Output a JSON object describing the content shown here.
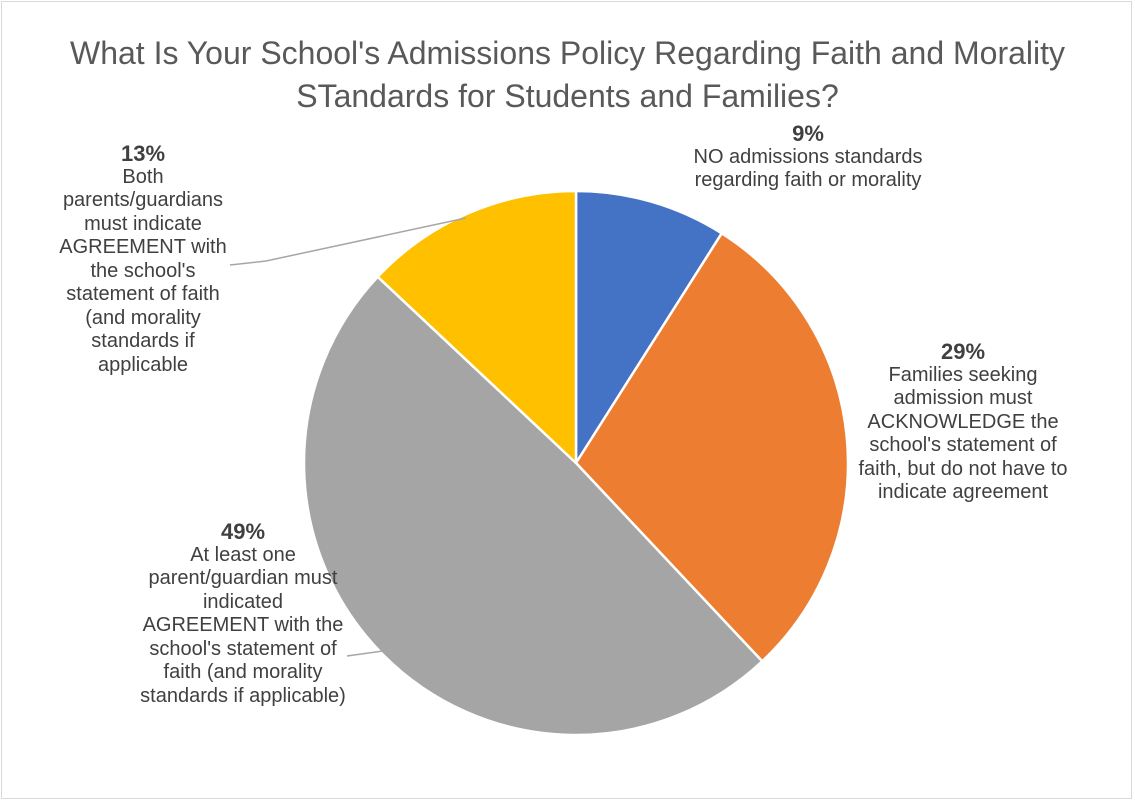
{
  "chart_data": {
    "type": "pie",
    "title": "What Is Your School's Admissions Policy Regarding Faith and Morality STandards for Students and Families?",
    "slices": [
      {
        "pct_label": "9%",
        "value": 9,
        "label": "NO admissions standards regarding faith or morality",
        "color": "#4472c4"
      },
      {
        "pct_label": "29%",
        "value": 29,
        "label": "Families seeking admission must ACKNOWLEDGE the school's statement of faith, but do not have to indicate agreement",
        "color": "#ed7d31"
      },
      {
        "pct_label": "49%",
        "value": 49,
        "label": "At least one parent/guardian must indicated AGREEMENT with the school's statement of faith (and morality standards if applicable)",
        "color": "#a5a5a5"
      },
      {
        "pct_label": "13%",
        "value": 13,
        "label": "Both parents/guardians must indicate AGREEMENT with the school's statement of faith (and morality standards if applicable",
        "color": "#ffc000"
      }
    ],
    "start_angle_deg": 0,
    "direction": "clockwise",
    "legend": "none"
  }
}
